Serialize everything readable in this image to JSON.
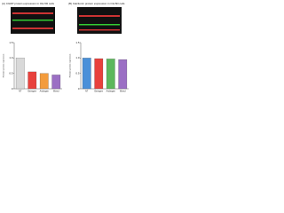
{
  "chart_data": [
    {
      "type": "bar",
      "title": "(A) CGRP protein expression in OH-5D cells",
      "ylabel": "Relative protein expression",
      "categories": [
        "NT",
        "Estrogen",
        "Androgen",
        "Mixed"
      ],
      "values": [
        1.0,
        0.55,
        0.5,
        0.45
      ],
      "colors": [
        "#d9d9d9",
        "#e8413c",
        "#f39c3d",
        "#9b6fc4"
      ],
      "ylim": [
        0,
        1.5
      ],
      "yticks": [
        0,
        0.5,
        {
          "value": 1,
          "label": "1.0"
        },
        1.5
      ]
    },
    {
      "type": "bar",
      "title": "(B) Calcitonin protein expression in OH-5D cells",
      "ylabel": "Relative protein expression",
      "categories": [
        "NT",
        "Estrogen",
        "Androgen",
        "Mixed"
      ],
      "values": [
        1.0,
        0.98,
        0.97,
        0.95
      ],
      "colors": [
        "#4a90d9",
        "#e8413c",
        "#5cb85c",
        "#9b6fc4"
      ],
      "ylim": [
        0,
        1.5
      ],
      "yticks": [
        0,
        0.5,
        {
          "value": 1,
          "label": "1.0"
        },
        1.5
      ]
    }
  ]
}
